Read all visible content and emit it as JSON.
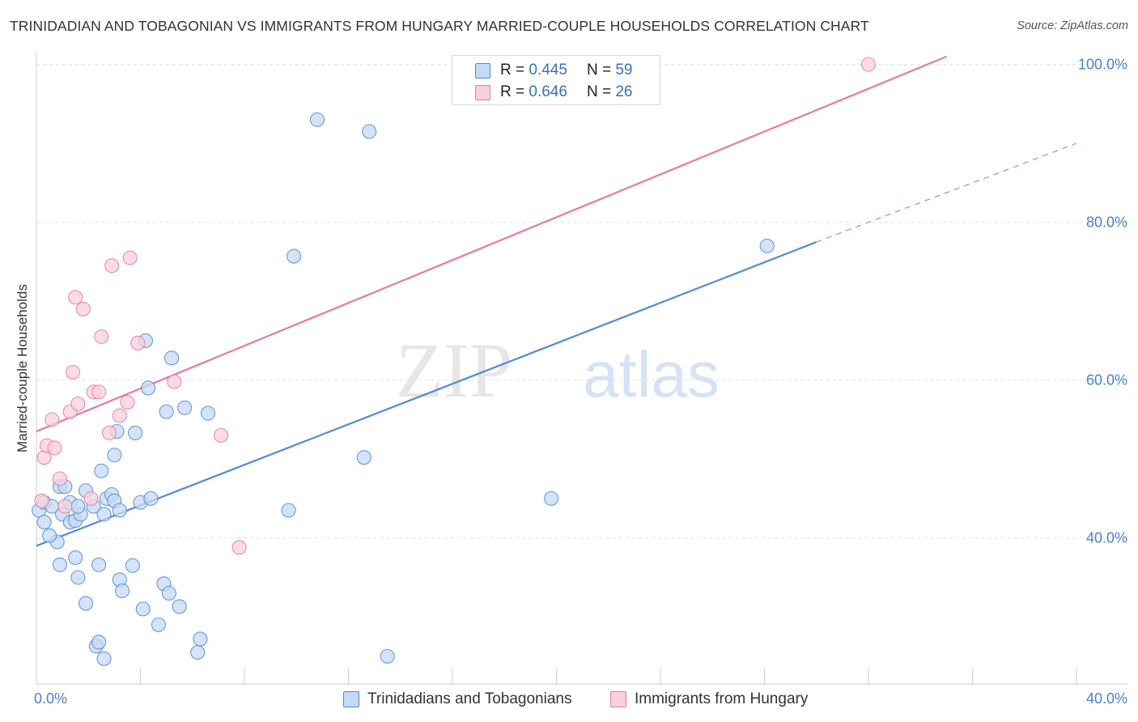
{
  "title": "TRINIDADIAN AND TOBAGONIAN VS IMMIGRANTS FROM HUNGARY MARRIED-COUPLE HOUSEHOLDS CORRELATION CHART",
  "source": "Source: ZipAtlas.com",
  "watermark": {
    "zip": "ZIP",
    "atlas": "atlas"
  },
  "legend": {
    "r_label": "R =",
    "n_label": "N =",
    "rows": [
      {
        "r": "0.445",
        "n": "59",
        "color": "#9ec2f0"
      },
      {
        "r": "0.646",
        "n": "26",
        "color": "#f4b8cb"
      }
    ]
  },
  "bottom_legend": [
    {
      "label": "Trinidadians and Tobagonians",
      "color": "#9ec2f0"
    },
    {
      "label": "Immigrants from Hungary",
      "color": "#f4b8cb"
    }
  ],
  "chart_data": {
    "type": "scatter",
    "title": "TRINIDADIAN AND TOBAGONIAN VS IMMIGRANTS FROM HUNGARY MARRIED-COUPLE HOUSEHOLDS CORRELATION CHART",
    "xlabel": "",
    "ylabel": "Married-couple Households",
    "xlim": [
      0,
      40
    ],
    "ylim": [
      21.5,
      101.5
    ],
    "x_tick_labels": [
      "0.0%",
      "40.0%"
    ],
    "y_ticks": [
      40,
      60,
      80,
      100
    ],
    "y_tick_labels": [
      "40.0%",
      "60.0%",
      "80.0%",
      "100.0%"
    ],
    "grid": true,
    "legend_position": "top-center",
    "series": [
      {
        "name": "Trinidadians and Tobagonians",
        "color": "#4f8ad6",
        "fill": "#c5daf6",
        "trend": {
          "x0": 0,
          "y0": 39,
          "x1": 30,
          "y1": 77.5,
          "dash_to_x": 40,
          "dash_to_y": 90
        },
        "points": [
          [
            0.1,
            43.5
          ],
          [
            0.3,
            44.5
          ],
          [
            0.3,
            42.0
          ],
          [
            0.6,
            44.0
          ],
          [
            0.8,
            39.5
          ],
          [
            0.5,
            40.3
          ],
          [
            0.9,
            46.5
          ],
          [
            1.1,
            46.5
          ],
          [
            1.0,
            43.0
          ],
          [
            1.3,
            42.0
          ],
          [
            1.3,
            44.5
          ],
          [
            1.5,
            42.2
          ],
          [
            1.7,
            43.0
          ],
          [
            1.9,
            46.0
          ],
          [
            2.2,
            44.0
          ],
          [
            2.5,
            48.5
          ],
          [
            2.6,
            43.0
          ],
          [
            2.7,
            45.0
          ],
          [
            2.9,
            45.5
          ],
          [
            3.0,
            44.7
          ],
          [
            3.0,
            50.5
          ],
          [
            3.2,
            43.5
          ],
          [
            3.1,
            53.5
          ],
          [
            3.8,
            53.3
          ],
          [
            4.0,
            44.5
          ],
          [
            4.2,
            65.0
          ],
          [
            4.3,
            59.0
          ],
          [
            4.4,
            45.0
          ],
          [
            5.0,
            56.0
          ],
          [
            5.2,
            62.8
          ],
          [
            5.7,
            56.5
          ],
          [
            6.6,
            55.8
          ],
          [
            0.9,
            36.6
          ],
          [
            1.5,
            37.5
          ],
          [
            1.6,
            35.0
          ],
          [
            1.9,
            31.7
          ],
          [
            2.3,
            26.3
          ],
          [
            2.4,
            26.8
          ],
          [
            2.6,
            24.7
          ],
          [
            2.4,
            36.6
          ],
          [
            3.2,
            34.7
          ],
          [
            3.3,
            33.3
          ],
          [
            3.7,
            36.5
          ],
          [
            4.1,
            31.0
          ],
          [
            4.7,
            29.0
          ],
          [
            4.9,
            34.2
          ],
          [
            5.1,
            33.0
          ],
          [
            5.5,
            31.3
          ],
          [
            6.2,
            25.5
          ],
          [
            6.3,
            27.2
          ],
          [
            9.9,
            75.7
          ],
          [
            10.8,
            93.0
          ],
          [
            12.6,
            50.2
          ],
          [
            12.8,
            91.5
          ],
          [
            13.5,
            25.0
          ],
          [
            19.8,
            45.0
          ],
          [
            28.1,
            77.0
          ],
          [
            9.7,
            43.5
          ],
          [
            1.6,
            44.0
          ]
        ]
      },
      {
        "name": "Immigrants from Hungary",
        "color": "#e77a9d",
        "fill": "#f8d0dd",
        "trend": {
          "x0": 0,
          "y0": 53.5,
          "x1": 35,
          "y1": 101.0
        },
        "points": [
          [
            0.2,
            44.7
          ],
          [
            0.3,
            50.2
          ],
          [
            0.4,
            51.7
          ],
          [
            0.6,
            55.0
          ],
          [
            0.7,
            51.4
          ],
          [
            0.9,
            47.5
          ],
          [
            1.1,
            44.0
          ],
          [
            1.3,
            56.0
          ],
          [
            1.4,
            61.0
          ],
          [
            1.6,
            57.0
          ],
          [
            1.5,
            70.5
          ],
          [
            1.8,
            69.0
          ],
          [
            2.1,
            45.0
          ],
          [
            2.2,
            58.5
          ],
          [
            2.4,
            58.5
          ],
          [
            2.5,
            65.5
          ],
          [
            2.8,
            53.3
          ],
          [
            2.9,
            74.5
          ],
          [
            3.2,
            55.5
          ],
          [
            3.5,
            57.2
          ],
          [
            3.6,
            75.5
          ],
          [
            3.9,
            64.7
          ],
          [
            5.3,
            59.8
          ],
          [
            7.1,
            53.0
          ],
          [
            7.8,
            38.8
          ],
          [
            32.0,
            100.0
          ]
        ]
      }
    ]
  }
}
